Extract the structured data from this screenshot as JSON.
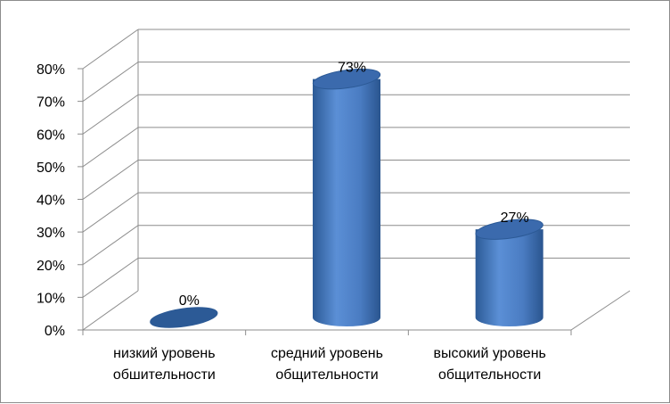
{
  "chart_data": {
    "type": "bar",
    "style": "3d-cylinder",
    "categories": [
      [
        "низкий уровень",
        "обшительности"
      ],
      [
        "средний уровень",
        "общительности"
      ],
      [
        "высокий уровень",
        "общительности"
      ]
    ],
    "values": [
      0,
      73,
      27
    ],
    "data_labels": [
      "0%",
      "73%",
      "27%"
    ],
    "y_ticks": [
      "0%",
      "10%",
      "20%",
      "30%",
      "40%",
      "50%",
      "60%",
      "70%",
      "80%"
    ],
    "ylim": [
      0,
      80
    ],
    "grid": true,
    "legend": "none",
    "colors": {
      "bar": "#4a7cc2",
      "bar_dark": "#2c5a96",
      "bar_top": "#3b6aad",
      "grid": "#8c8c8c"
    }
  }
}
